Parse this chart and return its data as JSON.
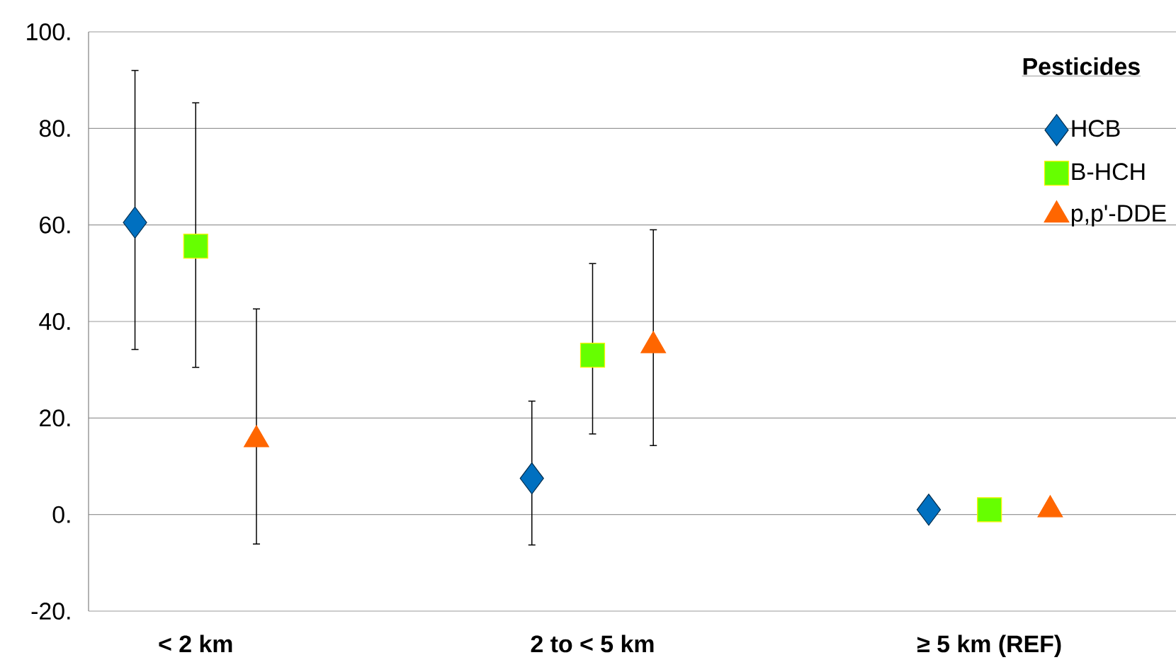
{
  "chart_data": {
    "type": "scatter",
    "categories": [
      "< 2 km",
      "2 to < 5 km",
      "≥ 5 km (REF)"
    ],
    "series": [
      {
        "name": "HCB",
        "color": "#0070c0",
        "marker": "diamond",
        "values": [
          60.5,
          7.5,
          1
        ],
        "errors": [
          [
            34.2,
            92
          ],
          [
            -6.3,
            23.5
          ],
          null
        ]
      },
      {
        "name": "B-HCH",
        "color": "#66ff00",
        "marker": "square",
        "values": [
          55.6,
          33,
          1
        ],
        "errors": [
          [
            30.5,
            85.3
          ],
          [
            16.7,
            52
          ],
          null
        ]
      },
      {
        "name": "p,p'-DDE",
        "color": "#ff6600",
        "marker": "triangle",
        "values": [
          15.5,
          35,
          1
        ],
        "errors": [
          [
            -6.1,
            42.6
          ],
          [
            14.3,
            59
          ],
          null
        ]
      }
    ],
    "ylim": [
      -20,
      100
    ],
    "yticks": [
      {
        "value": -20,
        "label": "-20."
      },
      {
        "value": 0,
        "label": "0."
      },
      {
        "value": 20,
        "label": "20."
      },
      {
        "value": 40,
        "label": "40."
      },
      {
        "value": 60,
        "label": "60."
      },
      {
        "value": 80,
        "label": "80."
      },
      {
        "value": 100,
        "label": "100."
      }
    ],
    "grid": "y",
    "legend": "top right",
    "legend_title": "Pesticides"
  }
}
